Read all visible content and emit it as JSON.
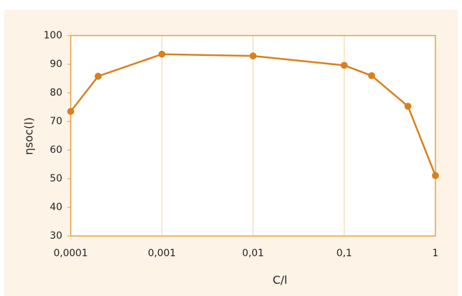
{
  "chart_data": {
    "type": "line",
    "x_label": "C/l",
    "y_label": "ηsoc(l)",
    "x": [
      0.0001,
      0.0002,
      0.001,
      0.01,
      0.1,
      0.2,
      0.5,
      1
    ],
    "series": [
      {
        "name": null,
        "color": "#d9801a",
        "values": [
          73.5,
          85.8,
          93.5,
          92.9,
          89.6,
          86,
          75.3,
          51.1
        ]
      }
    ],
    "xscale": "log",
    "xlim": [
      0.0001,
      1
    ],
    "xticks": [
      {
        "value": 0.0001,
        "label": "0,0001"
      },
      {
        "value": 0.001,
        "label": "0,001"
      },
      {
        "value": 0.01,
        "label": "0,01"
      },
      {
        "value": 0.1,
        "label": "0,1"
      },
      1
    ],
    "ylim": [
      30,
      100
    ],
    "yticks": [
      30,
      40,
      50,
      60,
      70,
      80,
      90,
      100
    ],
    "xgrid": true,
    "background": "#fdf3e6",
    "axis_color": "#e9a040",
    "grid_color": "#f6d7a8"
  }
}
